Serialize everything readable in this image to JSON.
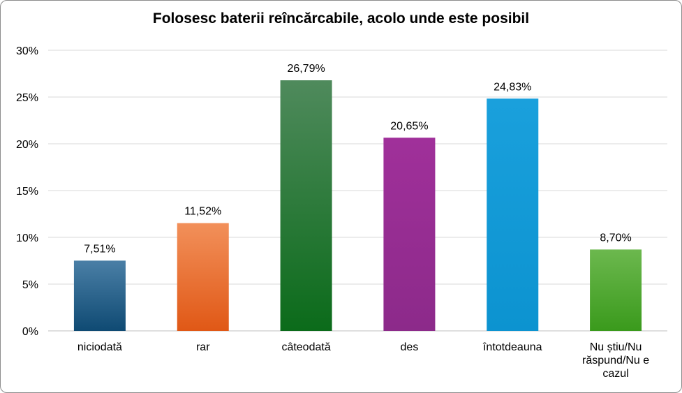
{
  "chart_data": {
    "type": "bar",
    "title": "Folosesc baterii reîncărcabile, acolo unde este posibil",
    "xlabel": "",
    "ylabel": "",
    "ylim": [
      0,
      0.3
    ],
    "yticks": [
      0,
      0.05,
      0.1,
      0.15,
      0.2,
      0.25,
      0.3
    ],
    "ytick_labels": [
      "0%",
      "5%",
      "10%",
      "15%",
      "20%",
      "25%",
      "30%"
    ],
    "grid": true,
    "legend": "none",
    "categories": [
      [
        "niciodată"
      ],
      [
        "rar"
      ],
      [
        "câteodată"
      ],
      [
        "des"
      ],
      [
        "întotdeauna"
      ],
      [
        "Nu știu/Nu",
        "răspund/Nu e",
        "cazul"
      ]
    ],
    "values": [
      0.0751,
      0.1152,
      0.2679,
      0.2065,
      0.2483,
      0.087
    ],
    "value_labels": [
      "7,51%",
      "11,52%",
      "26,79%",
      "20,65%",
      "24,83%",
      "8,70%"
    ],
    "bar_colors": [
      [
        "#4a7fa6",
        "#0f4a73"
      ],
      [
        "#f2905a",
        "#e05816"
      ],
      [
        "#4f8a5c",
        "#0b6b1a"
      ],
      [
        "#a0309a",
        "#8c2a8a"
      ],
      [
        "#1aa0dc",
        "#0c93d0"
      ],
      [
        "#6cb84e",
        "#3a9a1c"
      ]
    ]
  }
}
